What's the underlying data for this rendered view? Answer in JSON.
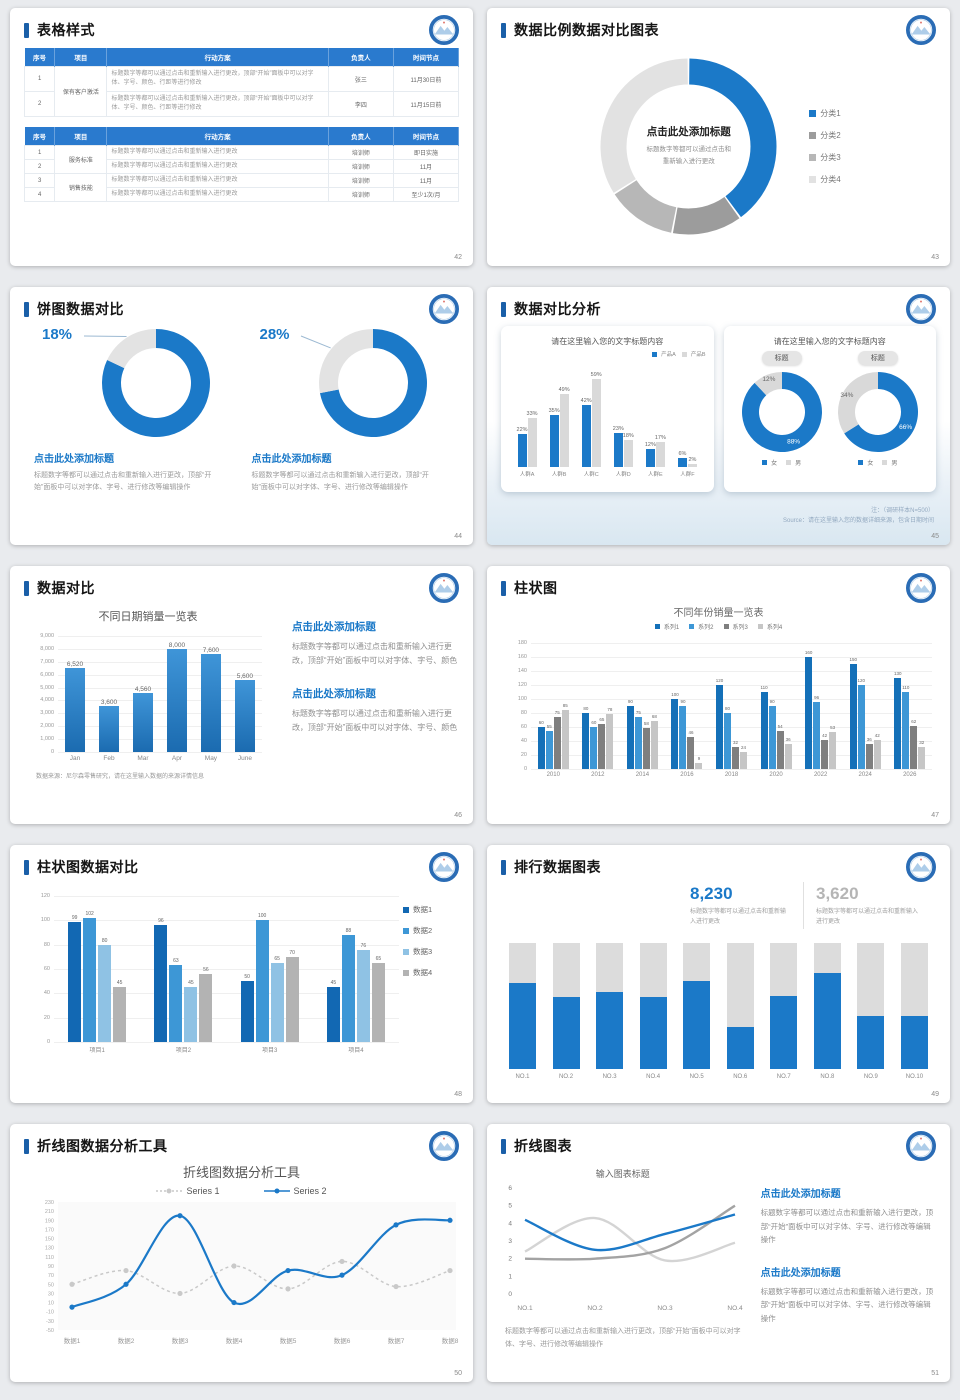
{
  "page_bg": "#e9ebee",
  "colors": {
    "accent": "#1a5fa8",
    "blue": "#1b79c8",
    "gray_light": "#d9d9d9",
    "gray": "#b3b3b3"
  },
  "logo_name": "school-badge-logo",
  "slides": [
    {
      "id": 42,
      "type": "tables",
      "title": "表格样式",
      "page": "42",
      "tables": [
        {
          "headers": [
            "序号",
            "项目",
            "行动方案",
            "负责人",
            "时间节点"
          ],
          "widths": [
            7,
            12,
            51,
            15,
            15
          ],
          "rows": [
            [
              {
                "t": "1"
              },
              {
                "t": "保有客户激活",
                "rs": 2
              },
              {
                "t": "标题数字等都可以通过点击和重新输入进行更改，顶部“开始”面板中可以对字体、字号、颜色、行距等进行修改",
                "c": "act"
              },
              {
                "t": "张三"
              },
              {
                "t": "11月30日前"
              }
            ],
            [
              {
                "t": "2"
              },
              {
                "t": "标题数字等都可以通过点击和重新输入进行更改，顶部“开始”面板中可以对字体、字号、颜色、行距等进行修改",
                "c": "act"
              },
              {
                "t": "李四"
              },
              {
                "t": "11月15日前"
              }
            ]
          ]
        },
        {
          "headers": [
            "序号",
            "项目",
            "行动方案",
            "负责人",
            "时间节点"
          ],
          "widths": [
            7,
            12,
            51,
            15,
            15
          ],
          "rows": [
            [
              {
                "t": "1"
              },
              {
                "t": "服务标准",
                "rs": 2
              },
              {
                "t": "标题数字等都可以通过点击和重新输入进行更改",
                "c": "act"
              },
              {
                "t": "培训师"
              },
              {
                "t": "即日实施"
              }
            ],
            [
              {
                "t": "2"
              },
              {
                "t": "标题数字等都可以通过点击和重新输入进行更改",
                "c": "act"
              },
              {
                "t": "培训师"
              },
              {
                "t": "11月"
              }
            ],
            [
              {
                "t": "3"
              },
              {
                "t": "销售技能",
                "rs": 2
              },
              {
                "t": "标题数字等都可以通过点击和重新输入进行更改",
                "c": "act"
              },
              {
                "t": "培训师"
              },
              {
                "t": "11月"
              }
            ],
            [
              {
                "t": "4"
              },
              {
                "t": "标题数字等都可以通过点击和重新输入进行更改",
                "c": "act"
              },
              {
                "t": "培训师"
              },
              {
                "t": "至少1次/月"
              }
            ]
          ]
        }
      ]
    },
    {
      "id": 43,
      "type": "donut_legend",
      "title": "数据比例数据对比图表",
      "page": "43",
      "chart_data": {
        "type": "pie",
        "donut": true,
        "center_title": "点击此处添加标题",
        "center_sub": "标题数字等都可以通过点击和\n重新输入进行更改",
        "slices": [
          {
            "label": "分类1",
            "value": 40,
            "color": "#1b79c8"
          },
          {
            "label": "分类2",
            "value": 13,
            "color": "#9c9c9c"
          },
          {
            "label": "分类3",
            "value": 13,
            "color": "#b7b7b7"
          },
          {
            "label": "分类4",
            "value": 34,
            "color": "#e2e2e2"
          }
        ]
      }
    },
    {
      "id": 44,
      "type": "two_donuts",
      "title": "饼图数据对比",
      "page": "44",
      "items": [
        {
          "heading": "点击此处添加标题",
          "body": "标题数字等都可以通过点击和重新输入进行更改，顶部“开始”面板中可以对字体、字号、进行修改等编辑操作"
        },
        {
          "heading": "点击此处添加标题",
          "body": "标题数字等都可以通过点击和重新输入进行更改，顶部“开始”面板中可以对字体、字号、进行修改等编辑操作"
        }
      ],
      "chart_data": [
        {
          "type": "pie",
          "donut": true,
          "slices": [
            {
              "label": "主体",
              "value": 82,
              "color": "#1b79c8"
            },
            {
              "label": "高亮",
              "value": 18,
              "color": "#e3e3e3"
            }
          ],
          "callout_label": "18%"
        },
        {
          "type": "pie",
          "donut": true,
          "slices": [
            {
              "label": "主体",
              "value": 72,
              "color": "#1b79c8"
            },
            {
              "label": "高亮",
              "value": 28,
              "color": "#e3e3e3"
            }
          ],
          "callout_label": "28%"
        }
      ]
    },
    {
      "id": 45,
      "type": "compare",
      "title": "数据对比分析",
      "page": "45",
      "left": {
        "title": "请在这里输入您的文字标题内容",
        "chart_data": {
          "type": "bar",
          "categories": [
            "人群A",
            "人群B",
            "人群C",
            "人群D",
            "人群E",
            "人群F"
          ],
          "series": [
            {
              "name": "产品A",
              "color": "#1b79c8",
              "values": [
                22,
                35,
                42,
                23,
                12,
                6
              ]
            },
            {
              "name": "产品B",
              "color": "#d9d9d9",
              "values": [
                33,
                49,
                59,
                18,
                17,
                2
              ]
            }
          ],
          "unit": "%",
          "ylim": [
            0,
            70
          ]
        }
      },
      "right": {
        "title": "请在这里输入您的文字标题内容",
        "donuts": [
          {
            "tag": "标题",
            "chart_data": {
              "type": "pie",
              "donut": true,
              "slices": [
                {
                  "label": "女",
                  "value": 88,
                  "color": "#1b79c8"
                },
                {
                  "label": "男",
                  "value": 12,
                  "color": "#d9d9d9"
                }
              ]
            }
          },
          {
            "tag": "标题",
            "chart_data": {
              "type": "pie",
              "donut": true,
              "slices": [
                {
                  "label": "女",
                  "value": 66,
                  "color": "#1b79c8"
                },
                {
                  "label": "男",
                  "value": 34,
                  "color": "#d9d9d9"
                }
              ]
            }
          }
        ]
      },
      "note": "注：（调研样本N=500）",
      "source": "Source：请在这里输入您的数据详细来源，包含日期时间"
    },
    {
      "id": 46,
      "type": "bar_text",
      "title": "数据对比",
      "page": "46",
      "chart_data": {
        "type": "bar",
        "title": "不同日期销量一览表",
        "categories": [
          "Jan",
          "Feb",
          "Mar",
          "Apr",
          "May",
          "June"
        ],
        "values": [
          6520,
          3600,
          4560,
          8000,
          7600,
          5600
        ],
        "labels": [
          "6,520",
          "3,600",
          "4,560",
          "8,000",
          "7,600",
          "5,600"
        ],
        "ylim": [
          0,
          9000
        ],
        "yticks": [
          "9,000",
          "8,000",
          "7,000",
          "6,000",
          "5,000",
          "4,000",
          "3,000",
          "2,000",
          "1,000",
          "0"
        ],
        "source": "数据来源：尼尔森零售研究，请在这里输入数据的来源详情信息"
      },
      "blocks": [
        {
          "heading": "点击此处添加标题",
          "body": "标题数字等都可以通过点击和重新输入进行更改，顶部“开始”面板中可以对字体、字号、颜色"
        },
        {
          "heading": "点击此处添加标题",
          "body": "标题数字等都可以通过点击和重新输入进行更改，顶部“开始”面板中可以对字体、字号、颜色"
        }
      ]
    },
    {
      "id": 47,
      "type": "grouped",
      "title": "柱状图",
      "page": "47",
      "chart_data": {
        "type": "bar",
        "title": "不同年份销量一览表",
        "legend_pos": "top",
        "categories": [
          "2010",
          "2012",
          "2014",
          "2016",
          "2018",
          "2020",
          "2022",
          "2024",
          "2026"
        ],
        "series": [
          {
            "name": "系列1",
            "color": "#1470b8",
            "values": [
              60,
              80,
              90,
              100,
              120,
              110,
              160,
              150,
              130
            ]
          },
          {
            "name": "系列2",
            "color": "#3d97d6",
            "values": [
              55,
              60,
              75,
              90,
              80,
              90,
              96,
              120,
              110
            ]
          },
          {
            "name": "系列3",
            "color": "#7f7f7f",
            "values": [
              75,
              65,
              58,
              46,
              32,
              54,
              42,
              36,
              62
            ]
          },
          {
            "name": "系列4",
            "color": "#c6c6c6",
            "values": [
              85,
              78,
              68,
              9,
              24,
              36,
              53,
              42,
              32
            ]
          }
        ],
        "ylim": [
          0,
          180
        ],
        "yticks": [
          "180",
          "160",
          "140",
          "120",
          "100",
          "80",
          "60",
          "40",
          "20",
          "0"
        ]
      }
    },
    {
      "id": 48,
      "type": "grouped",
      "title": "柱状图数据对比",
      "page": "48",
      "chart_data": {
        "type": "bar",
        "legend_pos": "right",
        "categories": [
          "项目1",
          "项目2",
          "项目3",
          "项目4"
        ],
        "series": [
          {
            "name": "数据1",
            "color": "#1268b3",
            "values": [
              99,
              96,
              50,
              45
            ]
          },
          {
            "name": "数据2",
            "color": "#3d97d6",
            "values": [
              102,
              63,
              100,
              88
            ]
          },
          {
            "name": "数据3",
            "color": "#8fc2e4",
            "values": [
              80,
              45,
              65,
              76
            ]
          },
          {
            "name": "数据4",
            "color": "#b3b3b3",
            "values": [
              45,
              56,
              70,
              65
            ]
          }
        ],
        "ylim": [
          0,
          120
        ],
        "yticks": [
          "120",
          "100",
          "80",
          "60",
          "40",
          "20",
          "0"
        ]
      }
    },
    {
      "id": 49,
      "type": "ranking",
      "title": "排行数据图表",
      "page": "49",
      "stats": [
        {
          "value": "8,230",
          "color": "#1b79c8",
          "desc": "标题数字等都可以通过点击和重新输入进行更改"
        },
        {
          "value": "3,620",
          "color": "#b5b5b5",
          "desc": "标题数字等都可以通过点击和重新输入进行更改"
        }
      ],
      "chart_data": {
        "type": "bar",
        "stacked": true,
        "categories": [
          "NO.1",
          "NO.2",
          "NO.3",
          "NO.4",
          "NO.5",
          "NO.6",
          "NO.7",
          "NO.8",
          "NO.9",
          "NO.10"
        ],
        "series": [
          {
            "name": "完成",
            "color": "#1b79c8",
            "values": [
              68,
              57,
              61,
              57,
              70,
              33,
              58,
              76,
              42,
              42
            ]
          },
          {
            "name": "剩余",
            "color": "#dcdcdc",
            "values": [
              32,
              43,
              39,
              43,
              30,
              67,
              42,
              24,
              58,
              58
            ]
          }
        ]
      }
    },
    {
      "id": 50,
      "type": "line",
      "title": "折线图数据分析工具",
      "page": "50",
      "chart_data": {
        "type": "line",
        "title": "折线图数据分析工具",
        "categories": [
          "数据1",
          "数据2",
          "数据3",
          "数据4",
          "数据5",
          "数据6",
          "数据7",
          "数据8"
        ],
        "series": [
          {
            "name": "Series 1",
            "color": "#c9c9c9",
            "dashed": true,
            "values": [
              50,
              80,
              30,
              90,
              40,
              100,
              45,
              80
            ]
          },
          {
            "name": "Series 2",
            "color": "#1b79c8",
            "dashed": false,
            "values": [
              0,
              50,
              200,
              10,
              80,
              70,
              180,
              190
            ]
          }
        ],
        "ylim": [
          -50,
          230
        ],
        "yticks": [
          "230",
          "210",
          "190",
          "170",
          "150",
          "130",
          "110",
          "90",
          "70",
          "50",
          "30",
          "10",
          "-10",
          "-30",
          "-50"
        ]
      }
    },
    {
      "id": 51,
      "type": "line_text",
      "title": "折线图表",
      "page": "51",
      "chart_data": {
        "type": "line",
        "title": "输入图表标题",
        "categories": [
          "NO.1",
          "NO.2",
          "NO.3",
          "NO.4"
        ],
        "series": [
          {
            "name": "折线1",
            "color": "#1b79c8",
            "values": [
              4.2,
              2.5,
              3.4,
              4.5
            ]
          },
          {
            "name": "折线2",
            "color": "#a3a3a3",
            "values": [
              2.0,
              2.0,
              2.6,
              5.0
            ]
          },
          {
            "name": "折线3",
            "color": "#d4d4d4",
            "values": [
              2.4,
              4.3,
              1.9,
              2.9
            ]
          }
        ],
        "ylim": [
          0,
          6
        ],
        "yticks": [
          "6",
          "5",
          "4",
          "3",
          "2",
          "1",
          "0"
        ]
      },
      "caption": "标题数字等都可以通过点击和重新输入进行更改，顶部“开始”面板中可以对字体、字号、进行修改等编辑操作",
      "blocks": [
        {
          "heading": "点击此处添加标题",
          "body": "标题数字等都可以通过点击和重新输入进行更改，顶部“开始”面板中可以对字体、字号、进行修改等编辑操作"
        },
        {
          "heading": "点击此处添加标题",
          "body": "标题数字等都可以通过点击和重新输入进行更改，顶部“开始”面板中可以对字体、字号、进行修改等编辑操作"
        }
      ]
    }
  ]
}
